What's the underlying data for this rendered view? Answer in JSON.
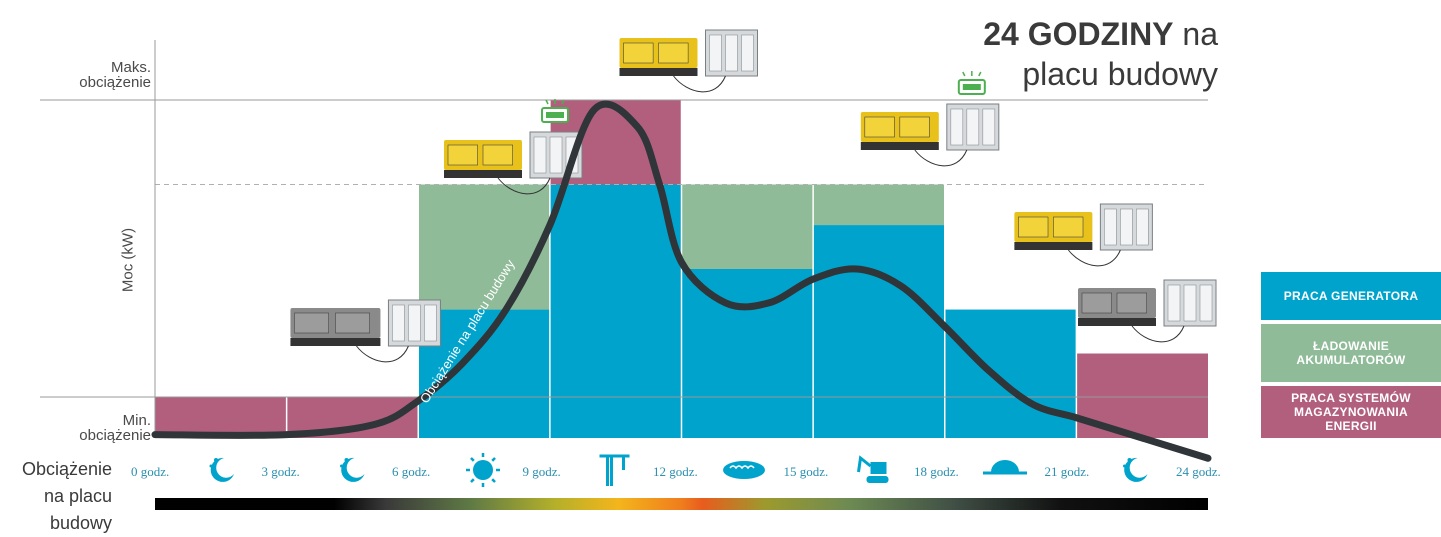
{
  "title": {
    "bold": "24 GODZINY",
    "rest_line1": " na",
    "line2": "placu budowy"
  },
  "y_axis": {
    "label": "Moc (kW)",
    "max_label": [
      "Maks.",
      "obciążenie"
    ],
    "min_label": [
      "Min.",
      "obciążenie"
    ]
  },
  "x_axis_lead": [
    "Obciążenie",
    "na placu",
    "budowy"
  ],
  "legend": [
    {
      "label": "PRACA GENERATORA",
      "color": "#00a3cc"
    },
    {
      "label": "ŁADOWANIE AKUMULATORÓW",
      "color": "#8fbb98"
    },
    {
      "label": "PRACA SYSTEMÓW MAGAZYNOWANIA ENERGII",
      "color": "#b25f7e"
    }
  ],
  "colors": {
    "generator": "#00a3cc",
    "charging": "#8fbb98",
    "storage": "#b25f7e",
    "curve": "#2f3538",
    "grid": "#9a9a9a"
  },
  "chart_data": {
    "type": "bar",
    "ylabel": "Moc (kW)",
    "ylim": [
      0,
      100
    ],
    "x": [
      "0 godz.",
      "3 godz.",
      "6 godz.",
      "9 godz.",
      "12 godz.",
      "15 godz.",
      "18 godz.",
      "21 godz.",
      "24 godz."
    ],
    "reference_lines": {
      "maks_obciazenie": 100,
      "dashed_level": 75
    },
    "intervals": [
      {
        "from": "0 godz.",
        "to": "3 godz.",
        "icon": "moon-stars-icon",
        "generator": 0,
        "charging": 0,
        "storage": 12
      },
      {
        "from": "3 godz.",
        "to": "6 godz.",
        "icon": "moon-stars-icon",
        "generator": 0,
        "charging": 0,
        "storage": 12
      },
      {
        "from": "6 godz.",
        "to": "9 godz.",
        "icon": "sun-icon",
        "generator": 38,
        "charging": 37,
        "storage": 0
      },
      {
        "from": "9 godz.",
        "to": "12 godz.",
        "icon": "crane-icon",
        "generator": 75,
        "charging": 0,
        "storage": 25
      },
      {
        "from": "12 godz.",
        "to": "15 godz.",
        "icon": "sandwich-icon",
        "generator": 50,
        "charging": 25,
        "storage": 0
      },
      {
        "from": "15 godz.",
        "to": "18 godz.",
        "icon": "excavator-icon",
        "generator": 63,
        "charging": 12,
        "storage": 0
      },
      {
        "from": "18 godz.",
        "to": "21 godz.",
        "icon": "sunset-icon",
        "generator": 38,
        "charging": 0,
        "storage": 0
      },
      {
        "from": "21 godz.",
        "to": "24 godz.",
        "icon": "moon-stars-icon",
        "generator": 0,
        "charging": 0,
        "storage": 25
      }
    ],
    "load_curve": {
      "name": "Obciążenie na placu budowy",
      "x_hours": [
        0,
        3,
        5,
        6,
        7,
        8,
        9,
        10,
        11,
        11.5,
        12,
        13,
        14,
        15,
        16,
        17,
        18,
        19,
        20,
        21,
        22,
        23,
        24
      ],
      "y": [
        1,
        1,
        4,
        11,
        22,
        38,
        63,
        97,
        92,
        75,
        52,
        40,
        40,
        47,
        50,
        45,
        33,
        20,
        10,
        6,
        2,
        -2,
        -6
      ]
    },
    "equipment_labels": [
      {
        "hour": 4.5,
        "battery": false
      },
      {
        "hour": 8,
        "battery": true
      },
      {
        "hour": 12,
        "battery": false
      },
      {
        "hour": 17.5,
        "battery": true
      },
      {
        "hour": 21,
        "battery": false
      },
      {
        "hour": 24,
        "battery": false
      }
    ]
  }
}
